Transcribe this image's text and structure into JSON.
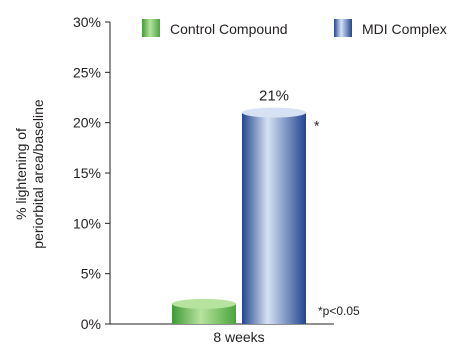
{
  "chart_data": {
    "type": "bar",
    "title": "",
    "xlabel": "",
    "ylabel_lines": [
      "% lightening of",
      "periorbital area/baseline"
    ],
    "categories": [
      "8 weeks"
    ],
    "series": [
      {
        "name": "Control Compound",
        "values": [
          2
        ]
      },
      {
        "name": "MDI Complex",
        "values": [
          21
        ]
      }
    ],
    "ylim": [
      0,
      30
    ],
    "yticks": [
      0,
      5,
      10,
      15,
      20,
      25,
      30
    ],
    "ytick_labels": [
      "0%",
      "5%",
      "10%",
      "15%",
      "20%",
      "25%",
      "30%"
    ],
    "data_labels": [
      "",
      "21%"
    ],
    "significance_marks": [
      "",
      "*"
    ],
    "footnote": "*p<0.05",
    "legend_position": "top",
    "grid": false,
    "colors": {
      "control": "#6cc24a",
      "control_light": "#b6e39e",
      "control_dark": "#3f9a36",
      "mdi": "#5a83c0",
      "mdi_light": "#d6e2f3",
      "mdi_dark": "#23468f",
      "axis": "#231f20"
    }
  }
}
